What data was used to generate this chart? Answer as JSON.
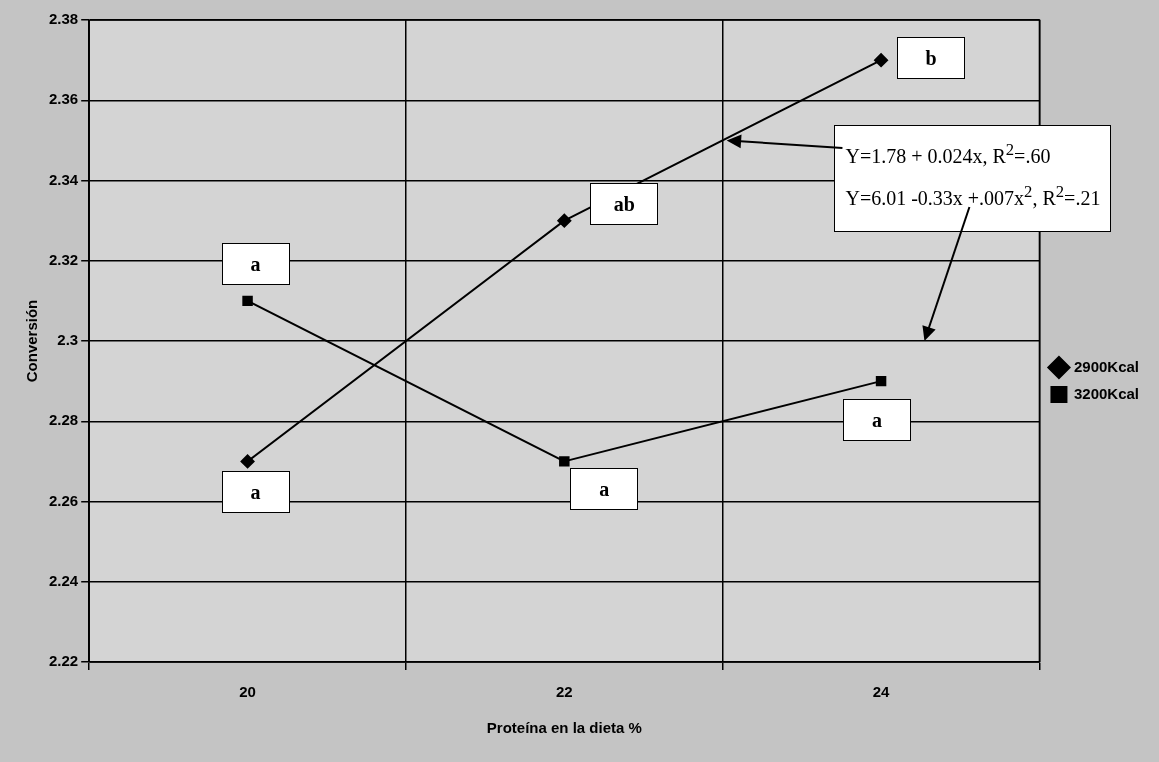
{
  "chart_data": {
    "type": "line",
    "categories": [
      "20",
      "22",
      "24"
    ],
    "xlabel": "Proteína en la dieta %",
    "ylabel": "Conversión",
    "ylim": [
      2.22,
      2.38
    ],
    "yticks": [
      2.22,
      2.24,
      2.26,
      2.28,
      2.3,
      2.32,
      2.34,
      2.36,
      2.38
    ],
    "grid": true,
    "legend": "right",
    "series": [
      {
        "name": "2900Kcal",
        "color": "#000000",
        "marker": "diamond",
        "values": [
          2.27,
          2.33,
          2.37
        ]
      },
      {
        "name": "3200Kcal",
        "color": "#000000",
        "marker": "square",
        "values": [
          2.31,
          2.27,
          2.29
        ]
      }
    ],
    "annotations": [
      {
        "text": "b",
        "x": "24",
        "y": 2.37
      },
      {
        "text": "ab",
        "x": "22",
        "y": 2.33
      },
      {
        "text": "a",
        "x": "20",
        "y": 2.27
      },
      {
        "text": "a",
        "x": "20",
        "y": 2.31
      },
      {
        "text": "a",
        "x": "22",
        "y": 2.27
      },
      {
        "text": "a",
        "x": "24",
        "y": 2.29
      },
      "Y=1.78 + 0.024x, R$^{2}$=.60",
      "Y=6.01 -0.33x +.007x$^{2}$,  R$^{2}$=.21"
    ]
  }
}
